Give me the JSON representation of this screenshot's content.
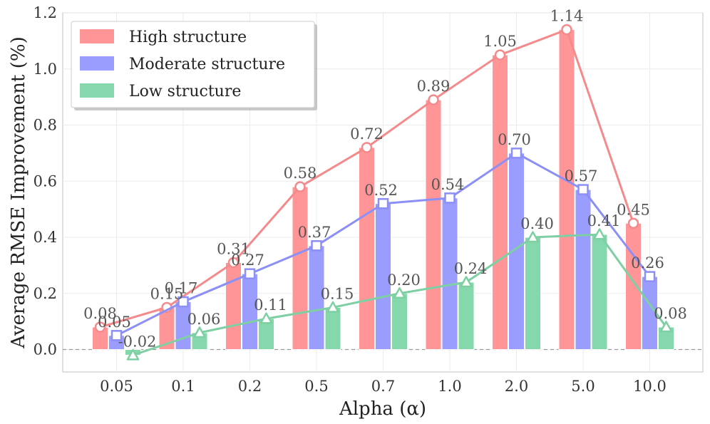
{
  "chart_data": {
    "type": "bar",
    "xlabel": "Alpha (α)",
    "ylabel": "Average RMSE Improvement (%)",
    "categories": [
      "0.05",
      "0.1",
      "0.2",
      "0.5",
      "0.7",
      "1.0",
      "2.0",
      "5.0",
      "10.0"
    ],
    "ylim": [
      -0.08,
      1.2
    ],
    "yticks": [
      "0.0",
      "0.2",
      "0.4",
      "0.6",
      "0.8",
      "1.0",
      "1.2"
    ],
    "ytick_values": [
      0.0,
      0.2,
      0.4,
      0.6,
      0.8,
      1.0,
      1.2
    ],
    "grid": true,
    "legend_position": "top-left",
    "series": [
      {
        "name": "High structure",
        "color": "#ff9596",
        "line_color": "#f48a8c",
        "marker": "circle",
        "values": [
          0.08,
          0.15,
          0.31,
          0.58,
          0.72,
          0.89,
          1.05,
          1.14,
          0.45
        ],
        "labels": [
          "0.08",
          "0.15",
          "0.31",
          "0.58",
          "0.72",
          "0.89",
          "1.05",
          "1.14",
          "0.45"
        ]
      },
      {
        "name": "Moderate structure",
        "color": "#9a9dfd",
        "line_color": "#8c8ff5",
        "marker": "square",
        "values": [
          0.05,
          0.17,
          0.27,
          0.37,
          0.52,
          0.54,
          0.7,
          0.57,
          0.26
        ],
        "labels": [
          "0.05",
          "0.17",
          "0.27",
          "0.37",
          "0.52",
          "0.54",
          "0.70",
          "0.57",
          "0.26"
        ]
      },
      {
        "name": "Low structure",
        "color": "#84d8ab",
        "line_color": "#7ecfa3",
        "marker": "triangle",
        "values": [
          -0.02,
          0.06,
          0.11,
          0.15,
          0.2,
          0.24,
          0.4,
          0.41,
          0.08
        ],
        "labels": [
          "-0.02",
          "0.06",
          "0.11",
          "0.15",
          "0.20",
          "0.24",
          "0.40",
          "0.41",
          "0.08"
        ]
      }
    ]
  }
}
